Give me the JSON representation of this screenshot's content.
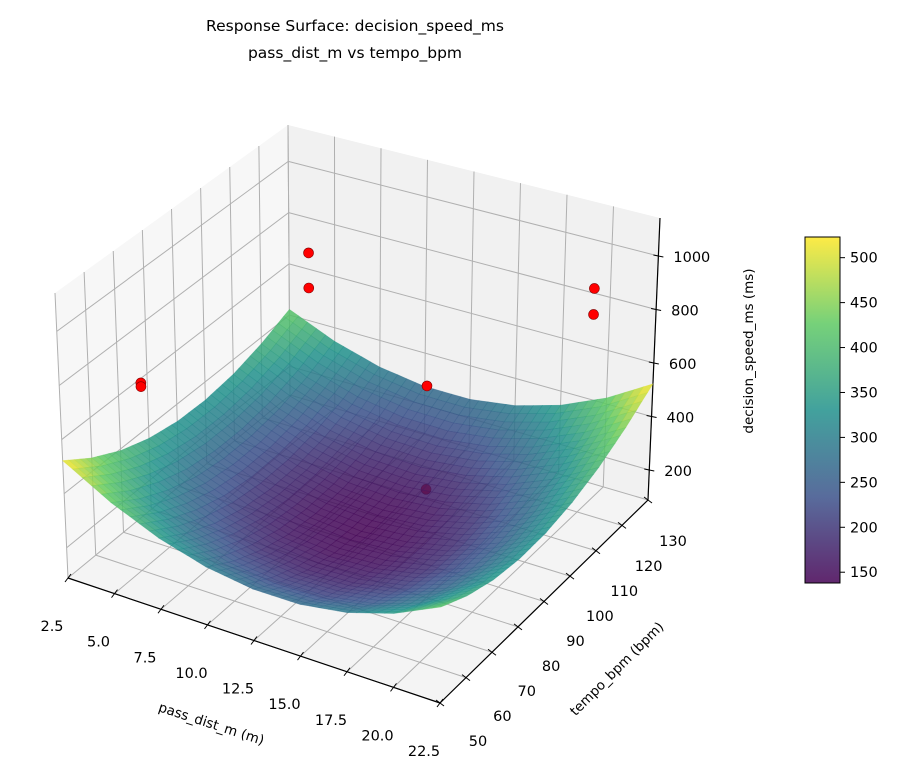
{
  "chart_data": {
    "type": "surface",
    "title": [
      "Response Surface: decision_speed_ms",
      "pass_dist_m vs tempo_bpm"
    ],
    "xlabel": "pass_dist_m (m)",
    "ylabel": "tempo_bpm (bpm)",
    "zlabel": "decision_speed_ms (ms)",
    "xlim": [
      2.5,
      22.5
    ],
    "ylim": [
      50,
      130
    ],
    "zlim": [
      88,
      1142
    ],
    "xticks": [
      "2.5",
      "5.0",
      "7.5",
      "10.0",
      "12.5",
      "15.0",
      "17.5",
      "20.0",
      "22.5"
    ],
    "yticks": [
      "50",
      "60",
      "70",
      "80",
      "90",
      "100",
      "110",
      "120",
      "130"
    ],
    "zticks": [
      "200",
      "400",
      "600",
      "800",
      "1000"
    ],
    "grid": true,
    "colormap": "viridis",
    "surface": {
      "x": [
        2.5,
        5.0,
        7.5,
        10.0,
        12.5,
        15.0,
        17.5,
        20.0,
        22.5
      ],
      "y": [
        50,
        60,
        70,
        80,
        90,
        100,
        110,
        120,
        130
      ],
      "z": [
        [
          522,
          422,
          347,
          297,
          272,
          272,
          297,
          347,
          422
        ],
        [
          450,
          353,
          281,
          234,
          212,
          215,
          243,
          297,
          375
        ],
        [
          394,
          301,
          232,
          188,
          169,
          176,
          207,
          263,
          344
        ],
        [
          356,
          265,
          200,
          159,
          144,
          153,
          187,
          247,
          331
        ],
        [
          335,
          248,
          185,
          148,
          135,
          148,
          185,
          248,
          335
        ],
        [
          331,
          247,
          187,
          153,
          144,
          159,
          200,
          265,
          356
        ],
        [
          344,
          263,
          207,
          176,
          169,
          188,
          232,
          301,
          394
        ],
        [
          375,
          297,
          243,
          215,
          212,
          234,
          281,
          353,
          450
        ],
        [
          422,
          347,
          297,
          272,
          272,
          297,
          347,
          422,
          522
        ]
      ]
    },
    "scatter": {
      "color": "#ff0000",
      "points": [
        {
          "x": 8.5,
          "y": 98,
          "z": 1025
        },
        {
          "x": 8.5,
          "y": 98,
          "z": 893
        },
        {
          "x": 4.5,
          "y": 65,
          "z": 730
        },
        {
          "x": 4.5,
          "y": 65,
          "z": 716
        },
        {
          "x": 16.0,
          "y": 90,
          "z": 741
        },
        {
          "x": 16.0,
          "y": 90,
          "z": 362
        },
        {
          "x": 22.5,
          "y": 106,
          "z": 1084
        },
        {
          "x": 22.5,
          "y": 106,
          "z": 989
        }
      ]
    },
    "colorbar": {
      "range": [
        138,
        523
      ],
      "ticks": [
        "150",
        "200",
        "250",
        "300",
        "350",
        "400",
        "450",
        "500"
      ]
    }
  }
}
